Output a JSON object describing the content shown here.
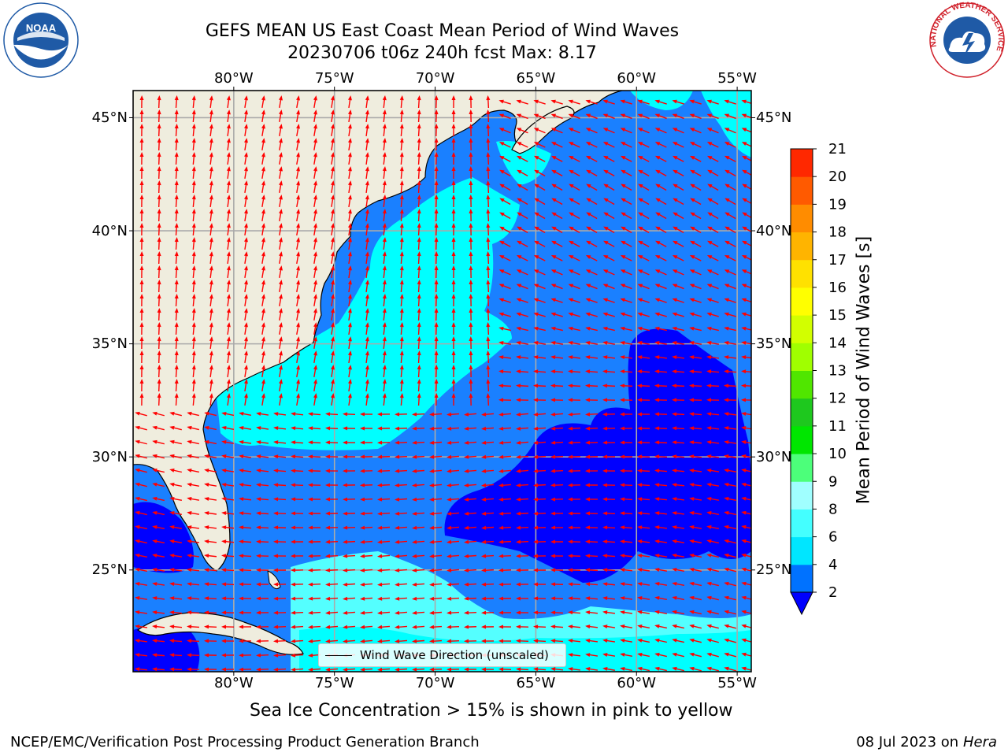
{
  "header": {
    "title": "GEFS MEAN US East Coast Mean Period of Wind Waves",
    "subtitle_line": "20230706 t06z 240h fcst   Max: 8.17"
  },
  "logos": {
    "left": {
      "name": "NOAA",
      "ring_text": "NATIONAL OCEANIC AND ATMOSPHERIC ADMINISTRATION · U.S. DEPARTMENT OF COMMERCE",
      "color": "#1f5aa6"
    },
    "right": {
      "name": "NATIONAL WEATHER SERVICE",
      "color": "#d0202a"
    }
  },
  "map": {
    "lon_ticks_top": [
      "80°W",
      "75°W",
      "70°W",
      "65°W",
      "60°W",
      "55°W"
    ],
    "lon_ticks_bottom": [
      "80°W",
      "75°W",
      "70°W",
      "65°W",
      "60°W",
      "55°W"
    ],
    "lat_ticks_left": [
      "45°N",
      "40°N",
      "35°N",
      "30°N",
      "25°N"
    ],
    "lat_ticks_right": [
      "45°N",
      "40°N",
      "35°N",
      "30°N",
      "25°N"
    ],
    "lon_values": [
      -80,
      -75,
      -70,
      -65,
      -60,
      -55
    ],
    "lat_values": [
      45,
      40,
      35,
      30,
      25
    ],
    "extent": {
      "lon_min": -85,
      "lon_max": -54.3,
      "lat_min": 20.5,
      "lat_max": 46.2
    },
    "grid": true,
    "land_color": "#efedde",
    "arrow_color": "#ff0000",
    "legend_label": "Wind Wave Direction (unscaled)"
  },
  "colorbar": {
    "label": "Mean Period of Wind Waves [s]",
    "tick_values": [
      "2",
      "4",
      "6",
      "8",
      "9",
      "10",
      "11",
      "12",
      "13",
      "14",
      "15",
      "16",
      "17",
      "18",
      "19",
      "20",
      "21"
    ],
    "colors": [
      "#0072ff",
      "#00e6ff",
      "#44ffff",
      "#a0ffff",
      "#4cff7a",
      "#00e600",
      "#1ec81e",
      "#50e600",
      "#a0ff00",
      "#d2ff00",
      "#ffff00",
      "#ffe100",
      "#ffb400",
      "#ff8c00",
      "#ff5a00",
      "#ff2800"
    ],
    "extend_below_color": "#0000ff"
  },
  "field_colors": {
    "level_2_4": "#1a80ff",
    "level_4_6": "#00ffff",
    "level_6_8": "#54ffff",
    "below_2": "#0000ff"
  },
  "notes": {
    "sea_ice": "Sea Ice Concentration > 15% is shown in pink to yellow"
  },
  "footer": {
    "left": "NCEP/EMC/Verification Post Processing Product Generation Branch",
    "date": "08 Jul 2023 on",
    "machine": "Hera"
  }
}
